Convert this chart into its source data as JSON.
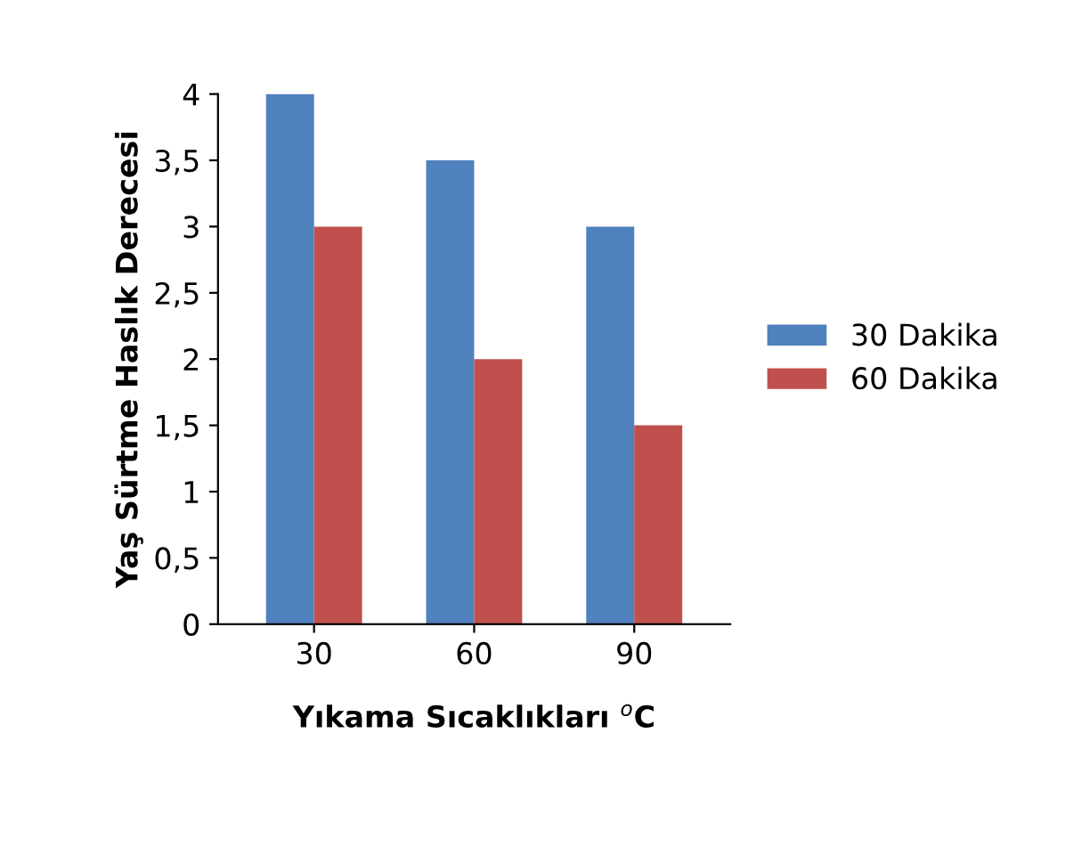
{
  "chart_data": {
    "type": "bar",
    "categories": [
      "30",
      "60",
      "90"
    ],
    "series": [
      {
        "name": "30 Dakika",
        "color": "#4f81bd",
        "values": [
          4,
          3.5,
          3
        ]
      },
      {
        "name": "60 Dakika",
        "color": "#c0504d",
        "values": [
          3,
          2,
          1.5
        ]
      }
    ],
    "xlabel": "Yıkama Sıcaklıkları $^{o}$C",
    "ylabel": "Yaş Sürtme Haslık Derecesi",
    "ylim": [
      0,
      4
    ],
    "yticks": [
      0,
      {
        "value": 0.5,
        "label": "0,5"
      },
      1,
      {
        "value": 1.5,
        "label": "1,5"
      },
      2,
      {
        "value": 2.5,
        "label": "2,5"
      },
      3,
      {
        "value": 3.5,
        "label": "3,5"
      },
      4
    ],
    "grid": false,
    "legend": "right"
  }
}
